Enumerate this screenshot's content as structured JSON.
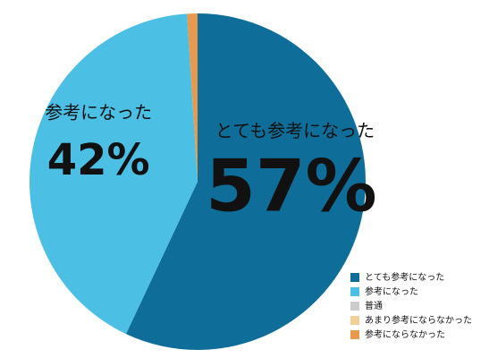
{
  "chart_data": {
    "type": "pie",
    "categories": [
      "とても参考になった",
      "参考になった",
      "普通",
      "あまり参考にならなかった",
      "参考にならなかった"
    ],
    "values": [
      57,
      42,
      0,
      0,
      1
    ],
    "value_labels": [
      "57%",
      "42%",
      null,
      null,
      null
    ],
    "colors": [
      "#0f6e99",
      "#4cc0e4",
      "#cccccc",
      "#f2cf98",
      "#e8994e"
    ],
    "legend": "bottom-right"
  }
}
